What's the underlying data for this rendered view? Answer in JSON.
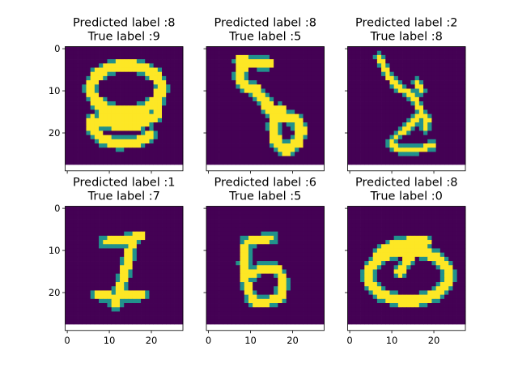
{
  "chart_data": {
    "type": "heatmap",
    "layout": "2x3 grid of digit images",
    "shared_x": true,
    "shared_y": true,
    "xlim": [
      -0.5,
      27.5
    ],
    "ylim": [
      29,
      -0.5
    ],
    "xticks": [
      0,
      10,
      20
    ],
    "yticks": [
      0,
      10,
      20
    ],
    "image_size": [
      28,
      28
    ],
    "colormap": "viridis",
    "colors": {
      "background": "#440154",
      "mid": "#21918c",
      "foreground": "#fde725",
      "axes_bg": "#ffffff"
    },
    "panels": [
      {
        "title_line1": "Predicted label :8",
        "title_line2": "True label :9",
        "predicted": 8,
        "true": 9
      },
      {
        "title_line1": "Predicted label :8",
        "title_line2": "True label :5",
        "predicted": 8,
        "true": 5
      },
      {
        "title_line1": "Predicted label :2",
        "title_line2": "True label :8",
        "predicted": 2,
        "true": 8
      },
      {
        "title_line1": "Predicted label :1",
        "title_line2": "True label :7",
        "predicted": 1,
        "true": 7
      },
      {
        "title_line1": "Predicted label :6",
        "title_line2": "True label :5",
        "predicted": 6,
        "true": 5
      },
      {
        "title_line1": "Predicted label :8",
        "title_line2": "True label :0",
        "predicted": 8,
        "true": 0
      }
    ]
  }
}
